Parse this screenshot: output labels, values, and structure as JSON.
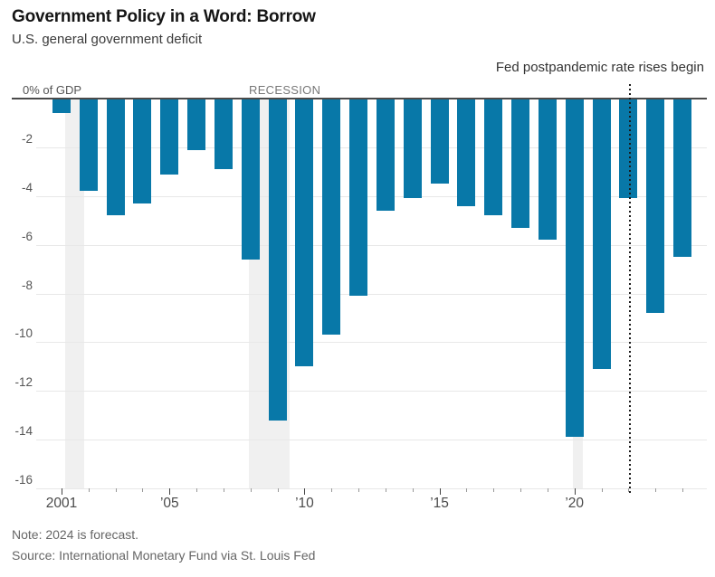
{
  "header": {
    "title": "Government Policy in a Word: Borrow",
    "subtitle": "U.S. general government deficit"
  },
  "footer": {
    "note": "Note: 2024 is forecast.",
    "source": "Source: International Monetary Fund via St. Louis Fed"
  },
  "chart_data": {
    "type": "bar",
    "title": "Government Policy in a Word: Borrow",
    "subtitle": "U.S. general government deficit",
    "y_axis_label": "0% of GDP",
    "recession_label": "RECESSION",
    "bar_color": "#0878a8",
    "recession_band_color": "#f0f0f0",
    "ylim": [
      -16,
      0
    ],
    "y_ticks": [
      -2,
      -4,
      -6,
      -8,
      -10,
      -12,
      -14,
      -16
    ],
    "x": [
      2001,
      2002,
      2003,
      2004,
      2005,
      2006,
      2007,
      2008,
      2009,
      2010,
      2011,
      2012,
      2013,
      2014,
      2015,
      2016,
      2017,
      2018,
      2019,
      2020,
      2021,
      2022,
      2023,
      2024
    ],
    "values": [
      -0.6,
      -3.8,
      -4.8,
      -4.3,
      -3.1,
      -2.1,
      -2.9,
      -6.6,
      -13.2,
      -11.0,
      -9.7,
      -8.1,
      -4.6,
      -4.1,
      -3.5,
      -4.4,
      -4.8,
      -5.3,
      -5.8,
      -13.9,
      -11.1,
      -4.1,
      -8.8,
      -6.5
    ],
    "x_tick_labels": {
      "2001": "2001",
      "2005": "’05",
      "2010": "’10",
      "2015": "’15",
      "2020": "’20"
    },
    "recessions": [
      {
        "start": 2001.15,
        "end": 2001.85
      },
      {
        "start": 2007.95,
        "end": 2009.45
      },
      {
        "start": 2019.95,
        "end": 2020.3
      }
    ],
    "marker_line": {
      "year": 2022.07,
      "label": "Fed postpandemic rate rises begin"
    },
    "grid": true,
    "legend": false
  }
}
